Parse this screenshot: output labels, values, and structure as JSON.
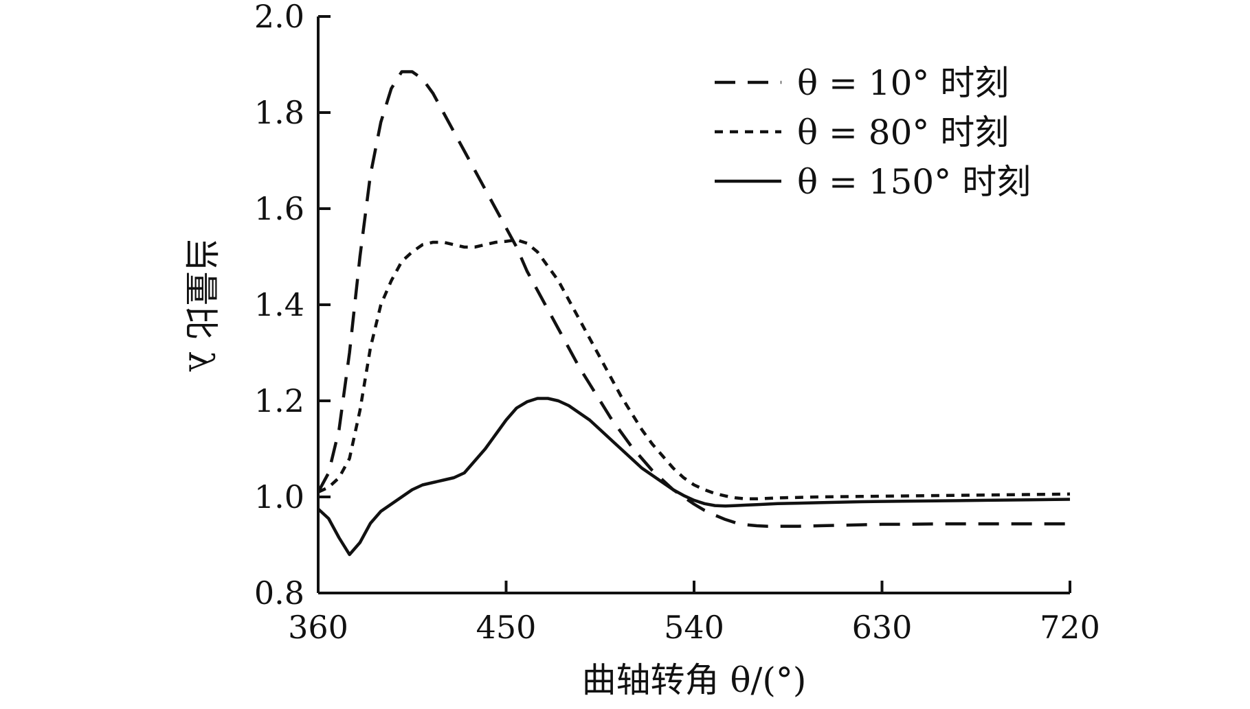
{
  "chart_data": {
    "type": "line",
    "title": "",
    "xlabel": "曲轴转角 θ/(°)",
    "ylabel": "当量比 λ",
    "xlim": [
      360,
      720
    ],
    "ylim": [
      0.8,
      2.0
    ],
    "xticks": [
      360,
      450,
      540,
      630,
      720
    ],
    "xtick_labels": [
      "360",
      "450",
      "540",
      "630",
      "720"
    ],
    "yticks": [
      0.8,
      1.0,
      1.2,
      1.4,
      1.6,
      1.8,
      2.0
    ],
    "ytick_labels": [
      "0.8",
      "1.0",
      "1.2",
      "1.4",
      "1.6",
      "1.8",
      "2.0"
    ],
    "grid": false,
    "legend_position": "top-right",
    "series": [
      {
        "name": "θ = 10° 时刻",
        "style": "dashed",
        "color": "#111111",
        "x": [
          360,
          365,
          370,
          375,
          380,
          385,
          390,
          395,
          400,
          405,
          410,
          415,
          420,
          425,
          430,
          435,
          440,
          445,
          450,
          455,
          460,
          465,
          470,
          475,
          480,
          485,
          490,
          495,
          500,
          505,
          510,
          515,
          520,
          525,
          530,
          535,
          540,
          545,
          550,
          555,
          560,
          565,
          570,
          575,
          580,
          590,
          600,
          610,
          620,
          630,
          640,
          660,
          680,
          700,
          720
        ],
        "y": [
          1.01,
          1.05,
          1.14,
          1.3,
          1.5,
          1.67,
          1.78,
          1.85,
          1.885,
          1.885,
          1.87,
          1.84,
          1.8,
          1.76,
          1.72,
          1.68,
          1.64,
          1.6,
          1.56,
          1.52,
          1.47,
          1.43,
          1.39,
          1.35,
          1.31,
          1.27,
          1.235,
          1.2,
          1.165,
          1.135,
          1.105,
          1.08,
          1.055,
          1.035,
          1.015,
          1.0,
          0.985,
          0.972,
          0.962,
          0.953,
          0.946,
          0.942,
          0.94,
          0.939,
          0.939,
          0.939,
          0.94,
          0.941,
          0.942,
          0.943,
          0.943,
          0.944,
          0.944,
          0.944,
          0.944
        ]
      },
      {
        "name": "θ = 80° 时刻",
        "style": "dotted",
        "color": "#111111",
        "x": [
          360,
          365,
          370,
          375,
          380,
          385,
          390,
          395,
          400,
          405,
          410,
          415,
          420,
          425,
          430,
          435,
          440,
          445,
          450,
          455,
          460,
          465,
          470,
          475,
          480,
          485,
          490,
          495,
          500,
          505,
          510,
          515,
          520,
          525,
          530,
          535,
          540,
          545,
          550,
          555,
          560,
          565,
          570,
          575,
          580,
          590,
          600,
          620,
          640,
          660,
          680,
          700,
          720
        ],
        "y": [
          1.01,
          1.02,
          1.04,
          1.08,
          1.18,
          1.31,
          1.4,
          1.45,
          1.49,
          1.51,
          1.525,
          1.53,
          1.53,
          1.525,
          1.52,
          1.52,
          1.525,
          1.53,
          1.532,
          1.535,
          1.528,
          1.51,
          1.48,
          1.45,
          1.41,
          1.37,
          1.33,
          1.29,
          1.25,
          1.21,
          1.175,
          1.14,
          1.11,
          1.085,
          1.06,
          1.04,
          1.025,
          1.015,
          1.007,
          1.002,
          0.998,
          0.996,
          0.996,
          0.997,
          0.998,
          0.999,
          1.0,
          1.001,
          1.002,
          1.003,
          1.004,
          1.005,
          1.006
        ]
      },
      {
        "name": "θ = 150° 时刻",
        "style": "solid",
        "color": "#111111",
        "x": [
          360,
          365,
          370,
          375,
          380,
          385,
          390,
          395,
          400,
          405,
          410,
          415,
          420,
          425,
          430,
          435,
          440,
          445,
          450,
          455,
          460,
          465,
          470,
          475,
          480,
          485,
          490,
          495,
          500,
          505,
          510,
          515,
          520,
          525,
          530,
          535,
          540,
          545,
          550,
          555,
          560,
          565,
          570,
          575,
          580,
          590,
          600,
          620,
          640,
          660,
          680,
          700,
          720
        ],
        "y": [
          0.975,
          0.955,
          0.915,
          0.88,
          0.905,
          0.945,
          0.97,
          0.985,
          1.0,
          1.015,
          1.025,
          1.03,
          1.035,
          1.04,
          1.05,
          1.075,
          1.1,
          1.13,
          1.16,
          1.185,
          1.198,
          1.205,
          1.205,
          1.2,
          1.19,
          1.175,
          1.16,
          1.14,
          1.12,
          1.1,
          1.08,
          1.06,
          1.045,
          1.03,
          1.015,
          1.003,
          0.993,
          0.986,
          0.982,
          0.981,
          0.982,
          0.983,
          0.984,
          0.985,
          0.986,
          0.987,
          0.988,
          0.99,
          0.991,
          0.992,
          0.993,
          0.994,
          0.995
        ]
      }
    ]
  }
}
